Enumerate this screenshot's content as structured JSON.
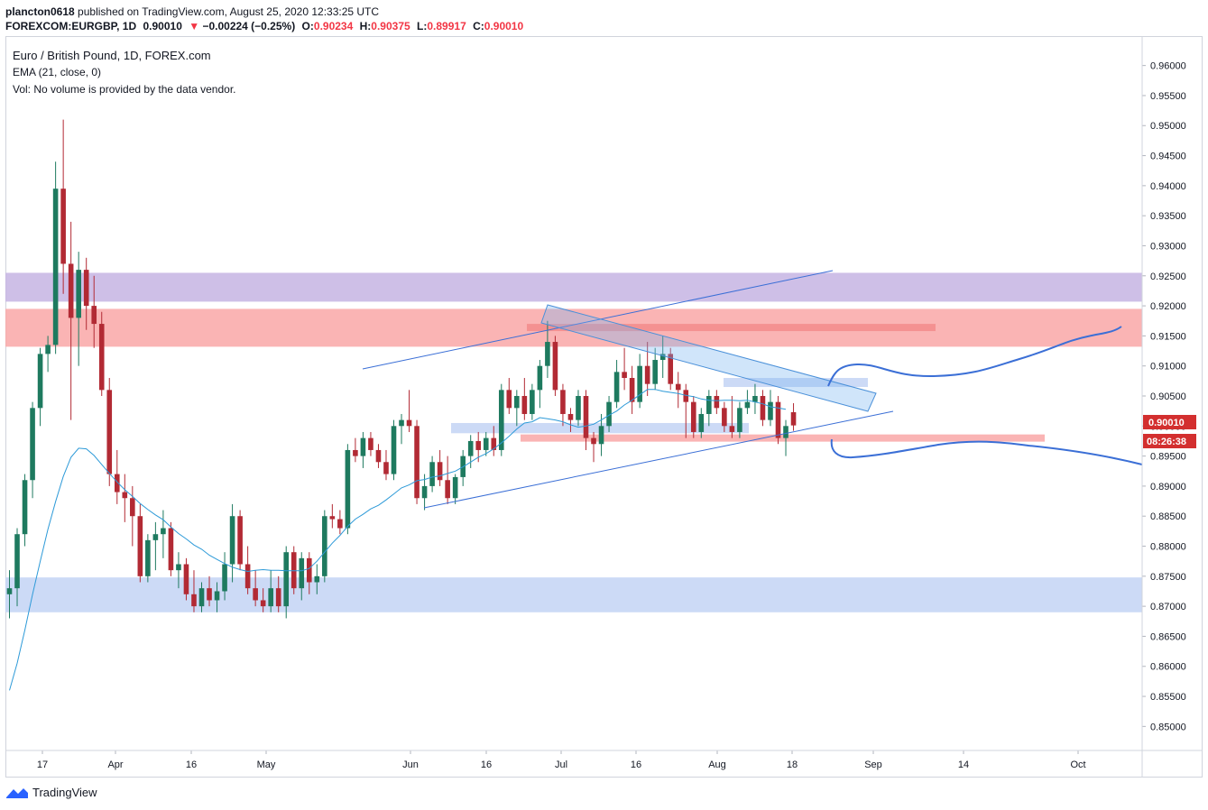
{
  "header": {
    "publisher": "plancton0618",
    "published_text": "published on TradingView.com, August 25, 2020 12:33:25 UTC",
    "symbol": "FOREXCOM:EURGBP, 1D",
    "price": "0.90010",
    "change": "−0.00224 (−0.25%)",
    "open_label": "O:",
    "open": "0.90234",
    "high_label": "H:",
    "high": "0.90375",
    "low_label": "L:",
    "low": "0.89917",
    "close_label": "C:",
    "close": "0.90010",
    "down_arrow": "▼"
  },
  "legend": {
    "title": "Euro / British Pound, 1D, FOREX.com",
    "ema": "EMA (21, close, 0)",
    "volume": "Vol: No volume is provided by the data vendor."
  },
  "price_tag": {
    "value": "0.90010",
    "countdown": "08:26:38",
    "color": "#d32f2f"
  },
  "footer": {
    "brand": "TradingView"
  },
  "colors": {
    "bull": "#1e7a5f",
    "bear": "#b22a34",
    "ema": "#2d9ad8",
    "trend": "#3b6fd6"
  },
  "chart_data": {
    "type": "candlestick",
    "title": "Euro / British Pound, 1D, FOREX.com",
    "ylim": [
      0.846,
      0.9649
    ],
    "y_ticks": [
      "0.96000",
      "0.95500",
      "0.95000",
      "0.94500",
      "0.94000",
      "0.93500",
      "0.93000",
      "0.92500",
      "0.92000",
      "0.91500",
      "0.91000",
      "0.90500",
      "0.90000",
      "0.89500",
      "0.89000",
      "0.88500",
      "0.88000",
      "0.87500",
      "0.87000",
      "0.86500",
      "0.86000",
      "0.85500",
      "0.85000"
    ],
    "x_ticks": [
      "17",
      "Apr",
      "16",
      "May",
      "Jun",
      "16",
      "Jul",
      "16",
      "Aug",
      "18",
      "Sep",
      "14",
      "Oct"
    ],
    "series": [
      {
        "name": "EMA (21, close, 0)",
        "values": [
          0.856,
          0.8605,
          0.866,
          0.872,
          0.8775,
          0.8828,
          0.8874,
          0.8916,
          0.8948,
          0.8963,
          0.8962,
          0.8951,
          0.8936,
          0.8921,
          0.8907,
          0.8894,
          0.8883,
          0.8871,
          0.8861,
          0.8852,
          0.8844,
          0.8832,
          0.8821,
          0.8812,
          0.8802,
          0.8795,
          0.8785,
          0.8778,
          0.8771,
          0.8765,
          0.8761,
          0.8758,
          0.876,
          0.8761,
          0.876,
          0.876,
          0.8759,
          0.8759,
          0.8759,
          0.8763,
          0.8775,
          0.879,
          0.8805,
          0.8818,
          0.8833,
          0.8845,
          0.8853,
          0.8862,
          0.8868,
          0.8877,
          0.8887,
          0.8897,
          0.8902,
          0.8909,
          0.8911,
          0.8915,
          0.8917,
          0.8921,
          0.8925,
          0.8932,
          0.894,
          0.8948,
          0.8954,
          0.8962,
          0.8972,
          0.8983,
          0.8995,
          0.9005,
          0.9007,
          0.9014,
          0.9012,
          0.901,
          0.9007,
          0.9002,
          0.8998,
          0.9,
          0.9003,
          0.901,
          0.9018,
          0.9025,
          0.9035,
          0.9043,
          0.9052,
          0.9061,
          0.9061,
          0.9058,
          0.9056,
          0.9054,
          0.9051,
          0.9049,
          0.9045,
          0.9043,
          0.9042,
          0.9043,
          0.9043,
          0.9042,
          0.9043,
          0.904,
          0.9037,
          0.9032,
          0.903,
          0.9028
        ]
      }
    ],
    "candles": [
      [
        0.872,
        0.876,
        0.868,
        0.873
      ],
      [
        0.873,
        0.883,
        0.87,
        0.882
      ],
      [
        0.882,
        0.892,
        0.88,
        0.891
      ],
      [
        0.891,
        0.904,
        0.888,
        0.903
      ],
      [
        0.903,
        0.913,
        0.9,
        0.912
      ],
      [
        0.912,
        0.915,
        0.909,
        0.9135
      ],
      [
        0.9135,
        0.944,
        0.912,
        0.9395
      ],
      [
        0.9395,
        0.951,
        0.922,
        0.927
      ],
      [
        0.927,
        0.934,
        0.901,
        0.918
      ],
      [
        0.918,
        0.929,
        0.91,
        0.926
      ],
      [
        0.926,
        0.928,
        0.916,
        0.92
      ],
      [
        0.92,
        0.925,
        0.913,
        0.917
      ],
      [
        0.917,
        0.919,
        0.905,
        0.906
      ],
      [
        0.906,
        0.908,
        0.89,
        0.892
      ],
      [
        0.892,
        0.896,
        0.887,
        0.889
      ],
      [
        0.889,
        0.892,
        0.884,
        0.888
      ],
      [
        0.888,
        0.89,
        0.88,
        0.885
      ],
      [
        0.885,
        0.887,
        0.874,
        0.875
      ],
      [
        0.875,
        0.882,
        0.874,
        0.881
      ],
      [
        0.881,
        0.884,
        0.876,
        0.882
      ],
      [
        0.882,
        0.886,
        0.878,
        0.883
      ],
      [
        0.883,
        0.884,
        0.875,
        0.876
      ],
      [
        0.876,
        0.879,
        0.873,
        0.877
      ],
      [
        0.877,
        0.878,
        0.871,
        0.872
      ],
      [
        0.872,
        0.876,
        0.869,
        0.87
      ],
      [
        0.87,
        0.874,
        0.869,
        0.873
      ],
      [
        0.873,
        0.875,
        0.87,
        0.871
      ],
      [
        0.871,
        0.874,
        0.869,
        0.8725
      ],
      [
        0.8725,
        0.879,
        0.871,
        0.877
      ],
      [
        0.877,
        0.887,
        0.874,
        0.885
      ],
      [
        0.885,
        0.886,
        0.876,
        0.877
      ],
      [
        0.877,
        0.88,
        0.872,
        0.873
      ],
      [
        0.873,
        0.876,
        0.87,
        0.871
      ],
      [
        0.871,
        0.873,
        0.869,
        0.87
      ],
      [
        0.87,
        0.876,
        0.869,
        0.873
      ],
      [
        0.873,
        0.875,
        0.869,
        0.87
      ],
      [
        0.87,
        0.88,
        0.868,
        0.879
      ],
      [
        0.879,
        0.88,
        0.872,
        0.873
      ],
      [
        0.873,
        0.879,
        0.871,
        0.878
      ],
      [
        0.878,
        0.879,
        0.872,
        0.874
      ],
      [
        0.874,
        0.877,
        0.872,
        0.875
      ],
      [
        0.875,
        0.886,
        0.874,
        0.885
      ],
      [
        0.885,
        0.887,
        0.883,
        0.8845
      ],
      [
        0.8845,
        0.886,
        0.882,
        0.883
      ],
      [
        0.883,
        0.897,
        0.882,
        0.896
      ],
      [
        0.896,
        0.898,
        0.894,
        0.895
      ],
      [
        0.895,
        0.899,
        0.893,
        0.898
      ],
      [
        0.898,
        0.899,
        0.895,
        0.896
      ],
      [
        0.896,
        0.897,
        0.893,
        0.894
      ],
      [
        0.894,
        0.896,
        0.891,
        0.892
      ],
      [
        0.892,
        0.901,
        0.891,
        0.9
      ],
      [
        0.9,
        0.902,
        0.897,
        0.901
      ],
      [
        0.901,
        0.906,
        0.899,
        0.9
      ],
      [
        0.9,
        0.901,
        0.887,
        0.888
      ],
      [
        0.888,
        0.892,
        0.886,
        0.89
      ],
      [
        0.89,
        0.895,
        0.889,
        0.894
      ],
      [
        0.894,
        0.896,
        0.89,
        0.891
      ],
      [
        0.891,
        0.895,
        0.887,
        0.888
      ],
      [
        0.888,
        0.892,
        0.887,
        0.8915
      ],
      [
        0.8915,
        0.896,
        0.89,
        0.895
      ],
      [
        0.895,
        0.8985,
        0.893,
        0.8975
      ],
      [
        0.8975,
        0.899,
        0.894,
        0.896
      ],
      [
        0.896,
        0.899,
        0.895,
        0.898
      ],
      [
        0.898,
        0.9,
        0.895,
        0.896
      ],
      [
        0.896,
        0.907,
        0.895,
        0.906
      ],
      [
        0.906,
        0.908,
        0.902,
        0.903
      ],
      [
        0.903,
        0.906,
        0.9,
        0.905
      ],
      [
        0.905,
        0.908,
        0.901,
        0.902
      ],
      [
        0.902,
        0.907,
        0.901,
        0.906
      ],
      [
        0.906,
        0.911,
        0.903,
        0.91
      ],
      [
        0.91,
        0.9175,
        0.908,
        0.914
      ],
      [
        0.914,
        0.915,
        0.905,
        0.906
      ],
      [
        0.906,
        0.907,
        0.9,
        0.902
      ],
      [
        0.902,
        0.903,
        0.899,
        0.901
      ],
      [
        0.901,
        0.906,
        0.9,
        0.905
      ],
      [
        0.905,
        0.906,
        0.896,
        0.898
      ],
      [
        0.898,
        0.899,
        0.894,
        0.897
      ],
      [
        0.897,
        0.902,
        0.895,
        0.9
      ],
      [
        0.9,
        0.905,
        0.899,
        0.904
      ],
      [
        0.904,
        0.911,
        0.903,
        0.909
      ],
      [
        0.909,
        0.913,
        0.906,
        0.908
      ],
      [
        0.908,
        0.91,
        0.902,
        0.904
      ],
      [
        0.904,
        0.912,
        0.903,
        0.91
      ],
      [
        0.91,
        0.914,
        0.905,
        0.907
      ],
      [
        0.907,
        0.913,
        0.906,
        0.911
      ],
      [
        0.911,
        0.915,
        0.908,
        0.912
      ],
      [
        0.912,
        0.913,
        0.906,
        0.907
      ],
      [
        0.907,
        0.909,
        0.903,
        0.906
      ],
      [
        0.906,
        0.907,
        0.898,
        0.904
      ],
      [
        0.904,
        0.905,
        0.898,
        0.899
      ],
      [
        0.899,
        0.903,
        0.898,
        0.902
      ],
      [
        0.902,
        0.906,
        0.9,
        0.905
      ],
      [
        0.905,
        0.906,
        0.902,
        0.903
      ],
      [
        0.903,
        0.904,
        0.899,
        0.9
      ],
      [
        0.9,
        0.905,
        0.898,
        0.899
      ],
      [
        0.899,
        0.904,
        0.898,
        0.903
      ],
      [
        0.903,
        0.906,
        0.902,
        0.904
      ],
      [
        0.904,
        0.907,
        0.902,
        0.905
      ],
      [
        0.905,
        0.906,
        0.9,
        0.901
      ],
      [
        0.901,
        0.906,
        0.9,
        0.904
      ],
      [
        0.904,
        0.905,
        0.897,
        0.898
      ],
      [
        0.898,
        0.901,
        0.895,
        0.9
      ],
      [
        0.9023,
        0.9038,
        0.8992,
        0.9001
      ]
    ],
    "zones": [
      {
        "name": "upper-purple-zone",
        "y": [
          0.9207,
          0.9255
        ],
        "color": "#c5b4e3"
      },
      {
        "name": "upper-red-zone",
        "y": [
          0.9132,
          0.9195
        ],
        "color": "#f9a7a7"
      },
      {
        "name": "lower-blue-zone",
        "y": [
          0.869,
          0.8748
        ],
        "color": "#c3d3f4"
      },
      {
        "name": "red-band-top",
        "y": [
          0.9158,
          0.917
        ],
        "color": "#f28b8b"
      },
      {
        "name": "red-band-mid",
        "y": [
          0.8974,
          0.8986
        ],
        "color": "#f9a7a7"
      },
      {
        "name": "blue-band-mid",
        "y": [
          0.8988,
          0.9005
        ],
        "color": "#c3d3f4"
      },
      {
        "name": "blue-band-upper",
        "y": [
          0.9065,
          0.908
        ],
        "color": "#c3d3f4"
      }
    ]
  }
}
